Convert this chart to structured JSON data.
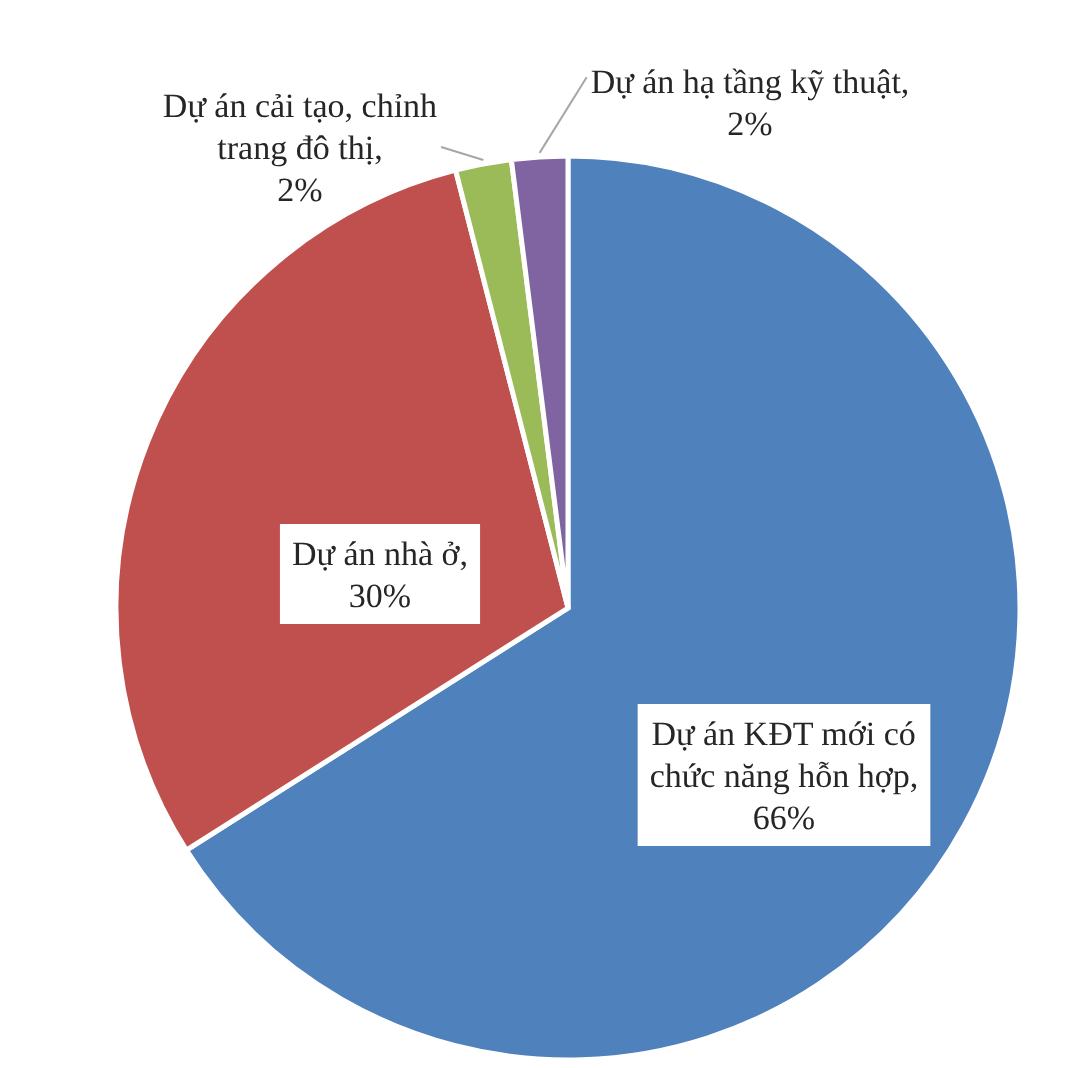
{
  "chart_data": {
    "type": "pie",
    "categories": [
      "Dự án KĐT mới có chức năng hỗn hợp",
      "Dự án nhà ở",
      "Dự án cải tạo, chỉnh trang đô thị",
      "Dự án hạ tầng kỹ thuật"
    ],
    "values": [
      66,
      30,
      2,
      2
    ],
    "value_labels": [
      ",\n66%",
      ",\n30%",
      ",\n2%",
      ",\n2%"
    ],
    "colors": [
      "#4f81bd",
      "#c0504d",
      "#9bbb59",
      "#8064a2"
    ]
  }
}
